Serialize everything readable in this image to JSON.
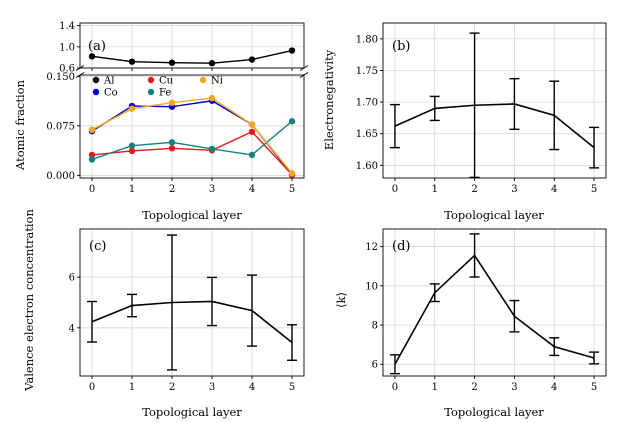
{
  "chart_data": [
    {
      "panel": "(a)",
      "type": "line",
      "ylabel": "Atomic fraction",
      "xlabel": "Topological layer",
      "x": [
        0,
        1,
        2,
        3,
        4,
        5
      ],
      "x_ticks": [
        "0",
        "1",
        "2",
        "3",
        "4",
        "5"
      ],
      "broken_y_axis": true,
      "upper_ylim": [
        0.6,
        1.45
      ],
      "upper_y_ticks": [
        "0.6",
        "1.0",
        "1.4"
      ],
      "lower_ylim": [
        -0.004,
        0.152
      ],
      "lower_y_ticks": [
        "0.000",
        "0.075",
        "0.150"
      ],
      "grid": true,
      "legend_placement": "top-left",
      "series": [
        {
          "name": "Al",
          "color": "#000000",
          "values": [
            0.82,
            0.72,
            0.7,
            0.69,
            0.76,
            0.93
          ]
        },
        {
          "name": "Co",
          "color": "#0000cc",
          "values": [
            0.067,
            0.105,
            0.104,
            0.113,
            0.077,
            0.001
          ]
        },
        {
          "name": "Cu",
          "color": "#e41a1c",
          "values": [
            0.031,
            0.037,
            0.041,
            0.038,
            0.066,
            0.001
          ]
        },
        {
          "name": "Fe",
          "color": "#17807e",
          "values": [
            0.024,
            0.045,
            0.05,
            0.04,
            0.031,
            0.082
          ]
        },
        {
          "name": "Ni",
          "color": "#f5a623",
          "values": [
            0.069,
            0.101,
            0.11,
            0.117,
            0.077,
            0.003
          ]
        }
      ]
    },
    {
      "panel": "(b)",
      "type": "line",
      "ylabel": "Electronegativity",
      "xlabel": "Topological layer",
      "x": [
        0,
        1,
        2,
        3,
        4,
        5
      ],
      "x_ticks": [
        "0",
        "1",
        "2",
        "3",
        "4",
        "5"
      ],
      "ylim": [
        1.58,
        1.825
      ],
      "y_ticks": [
        "1.60",
        "1.65",
        "1.70",
        "1.75",
        "1.80"
      ],
      "grid": true,
      "values": [
        1.662,
        1.69,
        1.695,
        1.697,
        1.679,
        1.628
      ],
      "errors": [
        0.034,
        0.019,
        0.114,
        0.04,
        0.054,
        0.032
      ]
    },
    {
      "panel": "(c)",
      "type": "line",
      "ylabel": "Valence electron concentration",
      "xlabel": "Topological layer",
      "x": [
        0,
        1,
        2,
        3,
        4,
        5
      ],
      "x_ticks": [
        "0",
        "1",
        "2",
        "3",
        "4",
        "5"
      ],
      "ylim": [
        2.1,
        7.9
      ],
      "y_ticks": [
        "4",
        "6"
      ],
      "grid": true,
      "values": [
        4.24,
        4.88,
        5.0,
        5.04,
        4.68,
        3.42
      ],
      "errors": [
        0.8,
        0.44,
        2.66,
        0.95,
        1.4,
        0.7
      ]
    },
    {
      "panel": "(d)",
      "type": "line",
      "ylabel": "⟨k⟩",
      "xlabel": "Topological layer",
      "x": [
        0,
        1,
        2,
        3,
        4,
        5
      ],
      "x_ticks": [
        "0",
        "1",
        "2",
        "3",
        "4",
        "5"
      ],
      "ylim": [
        5.4,
        12.9
      ],
      "y_ticks": [
        "6",
        "8",
        "10",
        "12"
      ],
      "grid": true,
      "values": [
        6.0,
        9.65,
        11.55,
        8.45,
        6.9,
        6.32
      ],
      "errors": [
        0.48,
        0.45,
        1.1,
        0.8,
        0.45,
        0.3
      ]
    }
  ]
}
